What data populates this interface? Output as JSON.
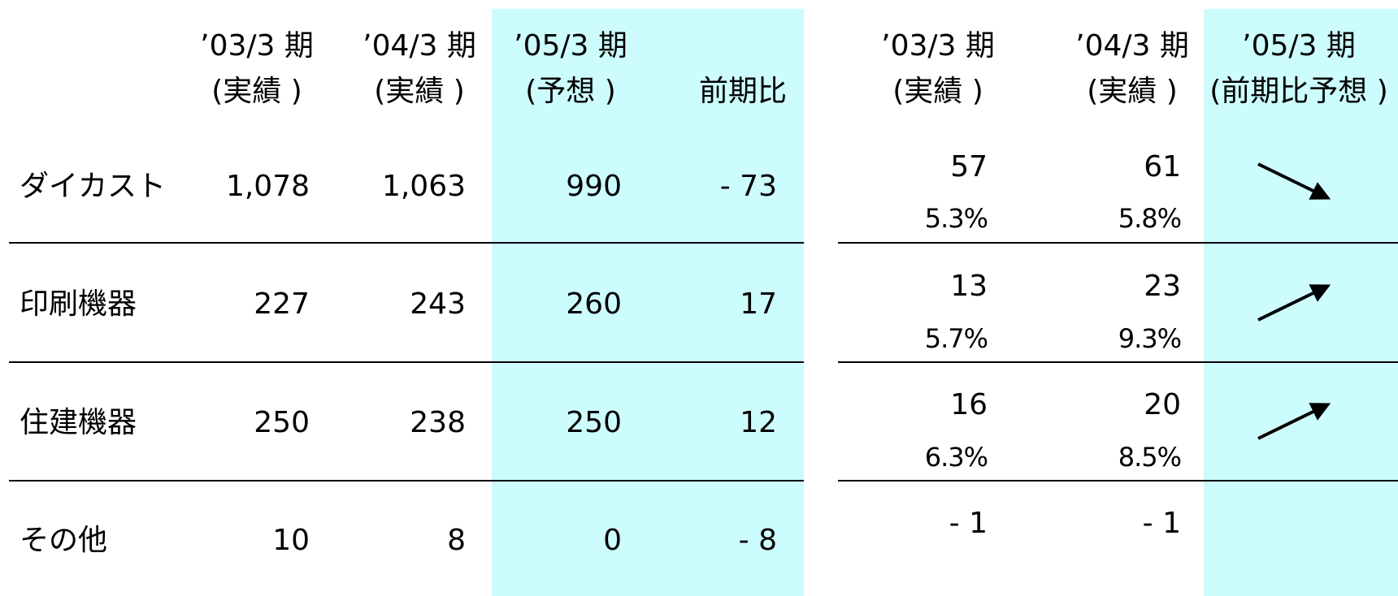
{
  "left": {
    "headers": [
      [
        "’03/3 期",
        "(実績 )"
      ],
      [
        "’04/3 期",
        "(実績 )"
      ],
      [
        "’05/3 期",
        "(予想 )"
      ],
      [
        "前期比"
      ]
    ],
    "rows": [
      {
        "label": "ダイカスト",
        "values": [
          "1,078",
          "1,063",
          "990",
          "- 73"
        ]
      },
      {
        "label": "印刷機器",
        "values": [
          "227",
          "243",
          "260",
          "17"
        ]
      },
      {
        "label": "住建機器",
        "values": [
          "250",
          "238",
          "250",
          "12"
        ]
      },
      {
        "label": "その他",
        "values": [
          "10",
          "8",
          "0",
          "- 8"
        ]
      }
    ]
  },
  "right": {
    "headers": [
      [
        "’03/3 期",
        "(実績 )"
      ],
      [
        "’04/3 期",
        "(実績 )"
      ],
      [
        "’05/3 期",
        "(前期比予想 )"
      ]
    ],
    "rows": [
      {
        "values": [
          {
            "amount": "57",
            "ratio": "5.3%"
          },
          {
            "amount": "61",
            "ratio": "5.8%"
          }
        ]
      },
      {
        "values": [
          {
            "amount": "13",
            "ratio": "5.7%"
          },
          {
            "amount": "23",
            "ratio": "9.3%"
          }
        ]
      },
      {
        "values": [
          {
            "amount": "16",
            "ratio": "6.3%"
          },
          {
            "amount": "20",
            "ratio": "8.5%"
          }
        ]
      },
      {
        "values": [
          {
            "amount": "- 1"
          },
          {
            "amount": "- 1"
          }
        ]
      }
    ]
  }
}
